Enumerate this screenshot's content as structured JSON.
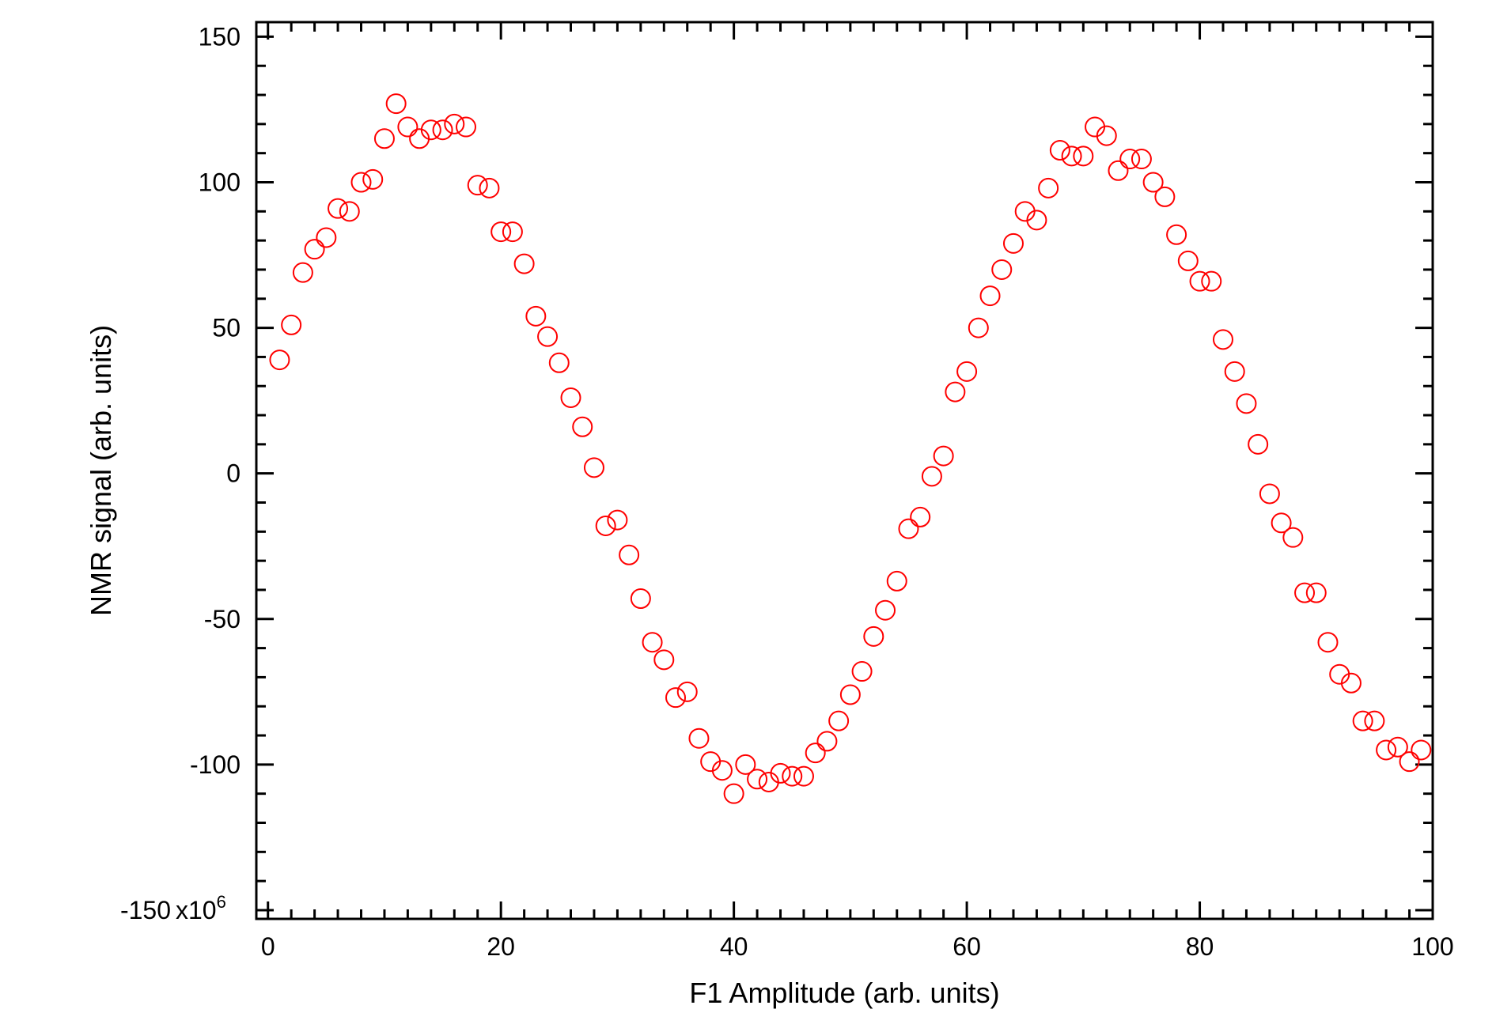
{
  "chart_data": {
    "type": "scatter",
    "title": "",
    "xlabel": "F1 Amplitude (arb. units)",
    "ylabel": "NMR signal (arb. units)",
    "y_multiplier_label": "x10",
    "y_multiplier_exp": "6",
    "xlim": [
      -1,
      100
    ],
    "ylim": [
      -153,
      155
    ],
    "x_ticks": [
      0,
      20,
      40,
      60,
      80,
      100
    ],
    "x_tick_labels": [
      "0",
      "20",
      "40",
      "60",
      "80",
      "100"
    ],
    "y_ticks": [
      -150,
      -100,
      -50,
      0,
      50,
      100,
      150
    ],
    "y_tick_labels": [
      "-150",
      "-100",
      "-50",
      "0",
      "50",
      "100",
      "150"
    ],
    "x_minor_step": 2,
    "y_minor_step": 10,
    "grid": false,
    "marker": "open-circle",
    "color": "#ff0000",
    "series": [
      {
        "x": [
          1,
          2,
          3,
          4,
          5,
          6,
          7,
          8,
          9,
          10,
          11,
          12,
          13,
          14,
          15,
          16,
          17,
          18,
          19,
          20,
          21,
          22,
          23,
          24,
          25,
          26,
          27,
          28,
          29,
          30,
          31,
          32,
          33,
          34,
          35,
          36,
          37,
          38,
          39,
          40,
          41,
          42,
          43,
          44,
          45,
          46,
          47,
          48,
          49,
          50,
          51,
          52,
          53,
          54,
          55,
          56,
          57,
          58,
          59,
          60,
          61,
          62,
          63,
          64,
          65,
          66,
          67,
          68,
          69,
          70,
          71,
          72,
          73,
          74,
          75,
          76,
          77,
          78,
          79,
          80,
          81,
          82,
          83,
          84,
          85,
          86,
          87,
          88,
          89,
          90,
          91,
          92,
          93,
          94,
          95,
          96,
          97,
          98,
          99
        ],
        "y": [
          39,
          51,
          69,
          77,
          81,
          91,
          90,
          100,
          101,
          115,
          127,
          119,
          115,
          118,
          118,
          120,
          119,
          99,
          98,
          83,
          83,
          72,
          54,
          47,
          38,
          26,
          16,
          2,
          -18,
          -16,
          -28,
          -43,
          -58,
          -64,
          -77,
          -75,
          -91,
          -99,
          -102,
          -110,
          -100,
          -105,
          -106,
          -103,
          -104,
          -104,
          -96,
          -92,
          -85,
          -76,
          -68,
          -56,
          -47,
          -37,
          -19,
          -15,
          -1,
          6,
          28,
          35,
          50,
          61,
          70,
          79,
          90,
          87,
          98,
          111,
          109,
          109,
          119,
          116,
          104,
          108,
          108,
          100,
          95,
          82,
          73,
          66,
          66,
          46,
          35,
          24,
          10,
          -7,
          -17,
          -22,
          -41,
          -41,
          -58,
          -69,
          -72,
          -85,
          -85,
          -95,
          -94,
          -99,
          -95
        ]
      }
    ]
  }
}
